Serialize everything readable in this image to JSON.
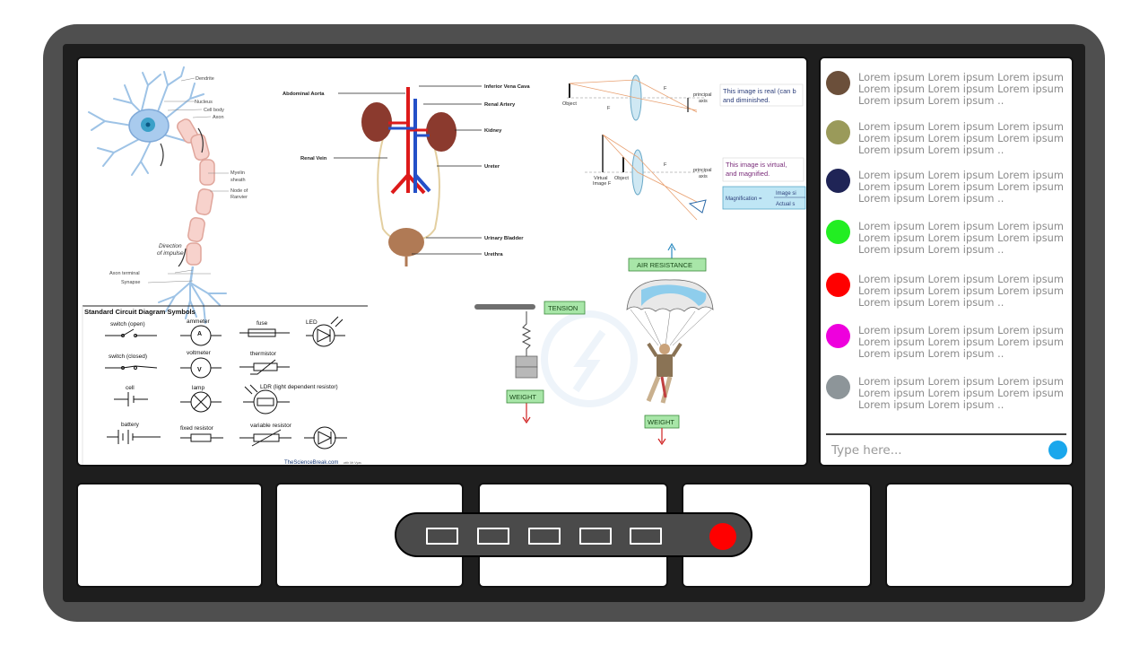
{
  "whiteboard": {
    "neuron": {
      "dendrite": "Dendrite",
      "nucleus": "Nucleus",
      "cell_body": "Cell body",
      "axon": "Axon",
      "myelin": "Myelin",
      "sheath": "sheath",
      "node_of": "Node of",
      "ranvier": "Ranvier",
      "direction": "Direction",
      "of_impulse": "of impulse",
      "axon_terminal": "Axon terminal",
      "synapse": "Synapse"
    },
    "kidney": {
      "abdominal_aorta": "Abdominal Aorta",
      "inferior_vena_cava": "Inferior Vena Cava",
      "renal_artery": "Renal Artery",
      "kidney": "Kidney",
      "renal_vein": "Renal Vein",
      "ureter": "Ureter",
      "urinary_bladder": "Urinary Bladder",
      "urethra": "Urethra"
    },
    "lens": {
      "object": "Object",
      "f": "F",
      "principal": "principal",
      "axis": "axis",
      "real_note_1": "This image is real (can b",
      "real_note_2": "and diminished.",
      "virtual_label": "Virtual",
      "image_f": "Image F",
      "virtual_note_1": "This image is virtual,",
      "virtual_note_2": "and magnified.",
      "magnification": "Magnification =",
      "image_si": "Image si",
      "actual_s": "Actual s"
    },
    "circuit": {
      "title": "Standard Circuit Diagram Symbols",
      "switch_open": "switch (open)",
      "ammeter": "ammeter",
      "fuse": "fuse",
      "led": "LED",
      "switch_closed": "switch (closed)",
      "voltmeter": "voltmeter",
      "thermistor": "thermistor",
      "cell": "cell",
      "lamp": "lamp",
      "ldr": "LDR (light dependent resistor)",
      "battery": "battery",
      "fixed_resistor": "fixed resistor",
      "variable_resistor": "variable resistor",
      "credit": "TheScienceBreak.com",
      "credit_small": "with Mr Vyas"
    },
    "forces": {
      "tension": "TENSION",
      "weight_left": "WEIGHT",
      "air_resistance": "AIR RESISTANCE",
      "weight_right": "WEIGHT"
    }
  },
  "chat": {
    "messages": [
      {
        "color": "#6b4f3a",
        "text": "Lorem ipsum Lorem ipsum Lorem ipsum Lorem ipsum Lorem ipsum Lorem ipsum Lorem ipsum Lorem ipsum .."
      },
      {
        "color": "#9a9a5a",
        "text": "Lorem ipsum Lorem ipsum Lorem ipsum Lorem ipsum Lorem ipsum Lorem ipsum Lorem ipsum Lorem ipsum .."
      },
      {
        "color": "#1f2456",
        "text": "Lorem ipsum Lorem ipsum Lorem ipsum Lorem ipsum Lorem ipsum Lorem ipsum Lorem ipsum Lorem ipsum .."
      },
      {
        "color": "#22ee22",
        "text": "Lorem ipsum Lorem ipsum Lorem ipsum Lorem ipsum Lorem ipsum Lorem ipsum Lorem ipsum Lorem ipsum .."
      },
      {
        "color": "#ff0000",
        "text": "Lorem ipsum Lorem ipsum Lorem ipsum Lorem ipsum Lorem ipsum Lorem ipsum Lorem ipsum Lorem ipsum .."
      },
      {
        "color": "#ee00dd",
        "text": "Lorem ipsum Lorem ipsum Lorem ipsum Lorem ipsum Lorem ipsum Lorem ipsum Lorem ipsum Lorem ipsum .."
      },
      {
        "color": "#8d9599",
        "text": "Lorem ipsum Lorem ipsum Lorem ipsum Lorem ipsum Lorem ipsum Lorem ipsum Lorem ipsum Lorem ipsum .."
      }
    ],
    "input_placeholder": "Type here...",
    "send_color": "#1aa7ec"
  },
  "controls": {
    "button_count": 5,
    "record_color": "#ff0000"
  },
  "colors": {
    "frame": "#4f4f4f",
    "inner": "#1e1e1e",
    "label_box": "#a8e6a8",
    "label_border": "#3a8a3a"
  }
}
